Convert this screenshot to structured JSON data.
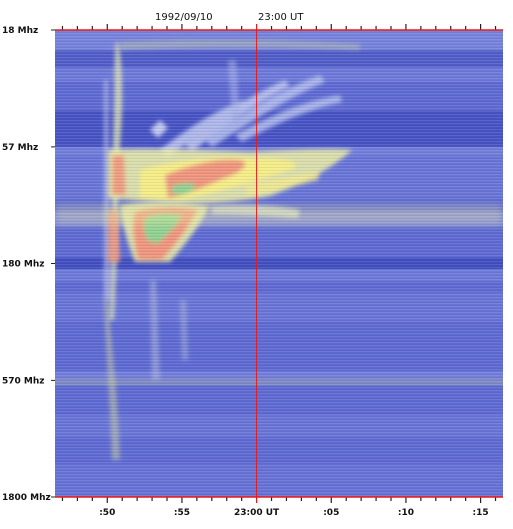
{
  "chart_data": {
    "type": "heatmap",
    "title": "",
    "date_label": "1992/09/10",
    "time_label": "23:00 UT",
    "y_axis": {
      "scale": "log",
      "ticks": [
        {
          "label": "18 Mhz",
          "value": 18
        },
        {
          "label": "57 Mhz",
          "value": 57
        },
        {
          "label": "180 Mhz",
          "value": 180
        },
        {
          "label": "570 Mhz",
          "value": 570
        },
        {
          "label": "1800 Mhz",
          "value": 1800
        }
      ],
      "range": [
        18,
        1800
      ]
    },
    "x_axis": {
      "unit": "minutes after 22:00 UT",
      "range": [
        46.5,
        76.5
      ],
      "major_ticks": [
        {
          "label": ":50",
          "value": 50
        },
        {
          "label": ":55",
          "value": 55
        },
        {
          "label": "23:00 UT",
          "value": 60
        },
        {
          "label": ":05",
          "value": 65
        },
        {
          "label": ":10",
          "value": 70
        },
        {
          "label": ":15",
          "value": 75
        }
      ],
      "reference_time": 60
    },
    "colors": {
      "background": "#5e6ad0",
      "band_dark": "#3a46b8",
      "band_light": "#8d96e4",
      "burst_low": "#e8ec9a",
      "burst_mid": "#f8f08a",
      "burst_high": "#f09080",
      "burst_peak": "#8ed08e",
      "reference_line": "#e81a1a",
      "tick_color": "#e81a1a"
    }
  }
}
